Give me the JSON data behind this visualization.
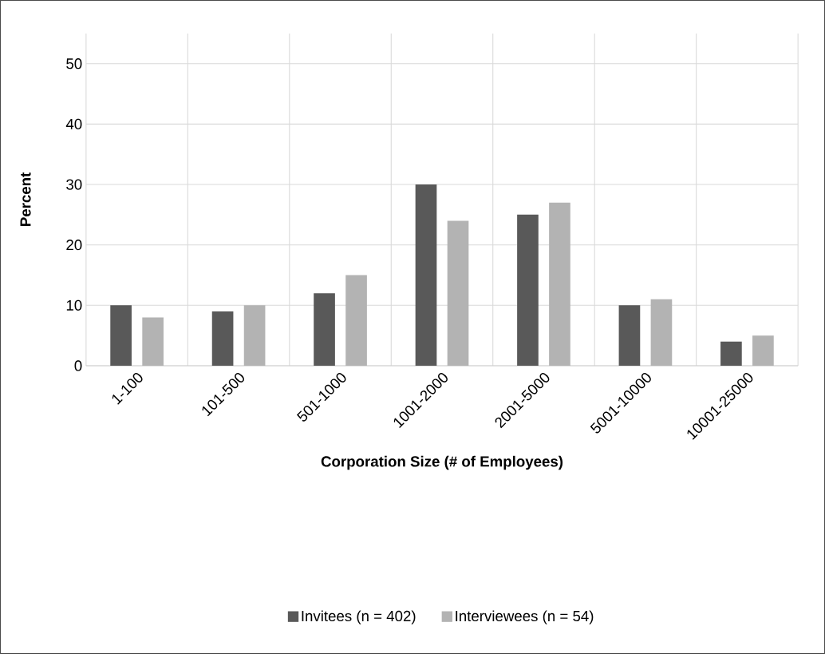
{
  "chart_data": {
    "type": "bar",
    "xlabel": "Corporation Size (# of Employees)",
    "ylabel": "Percent",
    "categories": [
      "1-100",
      "101-500",
      "501-1000",
      "1001-2000",
      "2001-5000",
      "5001-10000",
      "10001-25000"
    ],
    "series": [
      {
        "name": "Invitees (n = 402)",
        "color": "#595959",
        "values": [
          10,
          9,
          12,
          30,
          25,
          10,
          4
        ]
      },
      {
        "name": "Interviewees (n = 54)",
        "color": "#b3b3b3",
        "values": [
          8,
          10,
          15,
          24,
          27,
          11,
          5
        ]
      }
    ],
    "ylim": [
      0,
      55
    ],
    "yticks": [
      0,
      10,
      20,
      30,
      40,
      50
    ],
    "grid": true,
    "legend": "bottom"
  }
}
